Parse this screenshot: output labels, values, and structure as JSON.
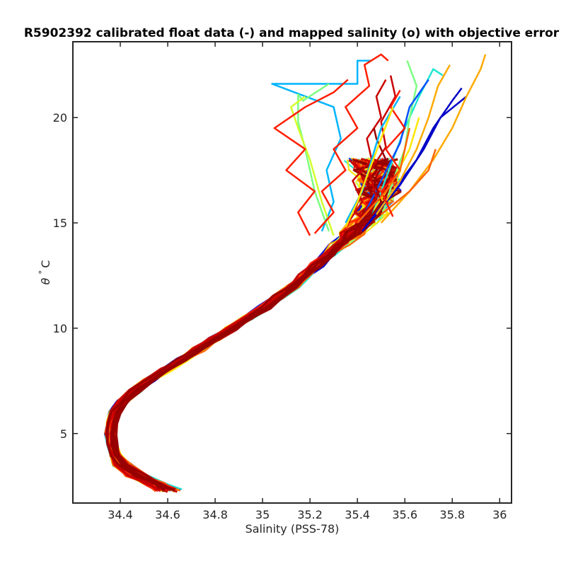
{
  "chart_data": {
    "type": "line",
    "title": "R5902392 calibrated float data (-) and mapped salinity (o) with objective error",
    "xlabel": "Salinity (PSS-78)",
    "ylabel_symbol": "θ",
    "ylabel_degree": "°",
    "ylabel_unit": "C",
    "xlim": [
      34.2,
      36.05
    ],
    "ylim": [
      1.7,
      23.6
    ],
    "xticks": [
      34.4,
      34.6,
      34.8,
      35,
      35.2,
      35.4,
      35.6,
      35.8,
      36
    ],
    "xtick_labels": [
      "34.4",
      "34.6",
      "34.8",
      "35",
      "35.2",
      "35.4",
      "35.6",
      "35.8",
      "36"
    ],
    "yticks": [
      5,
      10,
      15,
      20
    ],
    "ytick_labels": [
      "5",
      "10",
      "15",
      "20"
    ],
    "grid": false,
    "colormap": "jet",
    "colors": {
      "ramp": [
        "#0000c8",
        "#0050ff",
        "#00b4ff",
        "#1ee6d2",
        "#7dff82",
        "#d2ff2d",
        "#ffe600",
        "#ffaa00",
        "#ff6400",
        "#ff1e00",
        "#c80000",
        "#960000"
      ]
    },
    "core_profile": {
      "theta": [
        2.3,
        2.6,
        3.0,
        3.5,
        4.0,
        4.5,
        5.0,
        5.5,
        6.0,
        6.5,
        7.0,
        7.5,
        8.0,
        8.5,
        9.0,
        9.5,
        10.0,
        10.5,
        11.0,
        11.5,
        12.0,
        12.5,
        13.0,
        13.5,
        14.0,
        14.5,
        15.0,
        15.5,
        16.0,
        16.5,
        17.0,
        17.5,
        18.0
      ],
      "salinity": [
        34.6,
        34.55,
        34.47,
        34.41,
        34.38,
        34.365,
        34.36,
        34.365,
        34.38,
        34.41,
        34.46,
        34.52,
        34.59,
        34.66,
        34.73,
        34.8,
        34.87,
        34.94,
        35.01,
        35.07,
        35.13,
        35.18,
        35.23,
        35.28,
        35.33,
        35.38,
        35.43,
        35.46,
        35.48,
        35.49,
        35.49,
        35.48,
        35.46
      ]
    },
    "surface_branches": [
      {
        "color": "#00b4ff",
        "theta": [
          14.6,
          16.0,
          17.5,
          19.0,
          20.5,
          21.6,
          21.6,
          22.7,
          22.7
        ],
        "salinity": [
          35.25,
          35.3,
          35.27,
          35.33,
          35.3,
          35.04,
          35.4,
          35.4,
          35.46
        ]
      },
      {
        "color": "#7dff82",
        "theta": [
          14.6,
          16.5,
          18.5,
          19.8,
          21.1,
          20.8,
          21.6
        ],
        "salinity": [
          35.28,
          35.22,
          35.18,
          35.15,
          35.15,
          35.17,
          35.28
        ]
      },
      {
        "color": "#d2ff2d",
        "theta": [
          14.4,
          16.0,
          18.0,
          19.5,
          20.5,
          21.0
        ],
        "salinity": [
          35.3,
          35.25,
          35.2,
          35.15,
          35.12,
          35.18
        ]
      },
      {
        "color": "#1ee6d2",
        "theta": [
          15.0,
          16.5,
          18.0,
          19.5,
          21.0,
          22.3,
          22.0
        ],
        "salinity": [
          35.45,
          35.5,
          35.55,
          35.6,
          35.66,
          35.72,
          35.76
        ]
      },
      {
        "color": "#7dff82",
        "theta": [
          15.2,
          17.0,
          18.5,
          20.0,
          21.5,
          22.7
        ],
        "salinity": [
          35.5,
          35.55,
          35.6,
          35.62,
          35.65,
          35.61
        ]
      },
      {
        "color": "#0000c8",
        "theta": [
          14.6,
          16.5,
          18.0,
          19.5,
          20.8,
          21.4
        ],
        "salinity": [
          35.42,
          35.55,
          35.65,
          35.72,
          35.8,
          35.84
        ]
      },
      {
        "color": "#0000c8",
        "theta": [
          15.0,
          16.8,
          18.5,
          20.0,
          21.0
        ],
        "salinity": [
          35.45,
          35.58,
          35.68,
          35.75,
          35.86
        ]
      },
      {
        "color": "#0050ff",
        "theta": [
          15.2,
          17.0,
          18.8,
          20.5,
          21.8
        ],
        "salinity": [
          35.42,
          35.5,
          35.58,
          35.62,
          35.7
        ]
      },
      {
        "color": "#ffaa00",
        "theta": [
          15.0,
          16.5,
          18.0,
          19.5,
          21.0,
          22.3,
          23.0
        ],
        "salinity": [
          35.5,
          35.62,
          35.72,
          35.8,
          35.86,
          35.92,
          35.94
        ]
      },
      {
        "color": "#ffaa00",
        "theta": [
          15.4,
          17.0,
          18.5,
          20.0,
          21.5,
          22.5
        ],
        "salinity": [
          35.48,
          35.58,
          35.65,
          35.7,
          35.74,
          35.79
        ]
      },
      {
        "color": "#ff6400",
        "theta": [
          15.4,
          16.5,
          17.5,
          18.5
        ],
        "salinity": [
          35.5,
          35.62,
          35.7,
          35.73
        ]
      },
      {
        "color": "#ffe600",
        "theta": [
          15.6,
          17.0,
          18.5,
          20.0
        ],
        "salinity": [
          35.47,
          35.55,
          35.62,
          35.66
        ]
      },
      {
        "color": "#ff1e00",
        "theta": [
          14.5,
          15.5,
          16.5,
          17.5,
          18.5,
          19.5,
          20.5,
          21.5,
          22.5,
          23.0,
          22.7
        ],
        "salinity": [
          35.22,
          35.3,
          35.25,
          35.35,
          35.3,
          35.4,
          35.35,
          35.45,
          35.43,
          35.5,
          35.53
        ]
      },
      {
        "color": "#ff1e00",
        "theta": [
          14.4,
          15.5,
          16.5,
          17.5,
          18.5,
          19.5,
          20.5,
          21.2,
          21.8
        ],
        "salinity": [
          35.2,
          35.15,
          35.22,
          35.1,
          35.18,
          35.05,
          35.18,
          35.3,
          35.36
        ]
      },
      {
        "color": "#c80000",
        "theta": [
          15.0,
          16.0,
          17.0,
          18.0,
          19.0,
          20.0,
          21.0,
          21.8
        ],
        "salinity": [
          35.36,
          35.42,
          35.38,
          35.46,
          35.44,
          35.5,
          35.48,
          35.52
        ]
      },
      {
        "color": "#c80000",
        "theta": [
          15.0,
          16.2,
          17.4,
          18.6,
          19.8,
          21.0,
          22.0
        ],
        "salinity": [
          35.4,
          35.48,
          35.45,
          35.52,
          35.5,
          35.56,
          35.54
        ]
      },
      {
        "color": "#960000",
        "theta": [
          15.0,
          16.0,
          17.0,
          18.0,
          19.0,
          19.5
        ],
        "salinity": [
          35.44,
          35.5,
          35.47,
          35.52,
          35.48,
          35.47
        ]
      },
      {
        "color": "#ff1e00",
        "theta": [
          15.3,
          16.5,
          17.5,
          18.5,
          19.5,
          20.5,
          21.3
        ],
        "salinity": [
          35.55,
          35.5,
          35.58,
          35.52,
          35.6,
          35.54,
          35.58
        ]
      },
      {
        "color": "#ff6400",
        "theta": [
          15.0,
          16.5,
          17.5,
          18.5,
          19.5
        ],
        "salinity": [
          35.4,
          35.52,
          35.58,
          35.6,
          35.62
        ]
      },
      {
        "color": "#00b4ff",
        "theta": [
          15.0,
          16.5,
          18.0,
          19.5,
          21.0
        ],
        "salinity": [
          35.35,
          35.42,
          35.46,
          35.5,
          35.58
        ]
      },
      {
        "color": "#ffe600",
        "theta": [
          14.8,
          16.0,
          17.5,
          19.0,
          20.5
        ],
        "salinity": [
          35.35,
          35.4,
          35.45,
          35.5,
          35.55
        ]
      }
    ]
  }
}
